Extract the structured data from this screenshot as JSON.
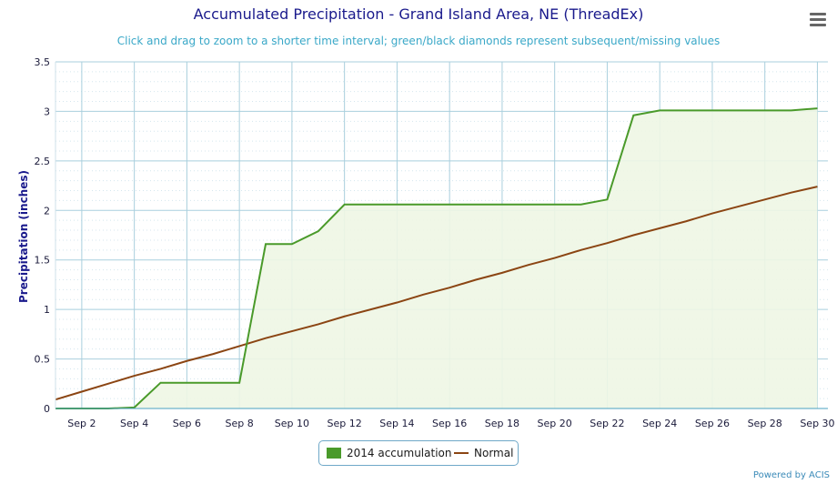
{
  "title": "Accumulated Precipitation - Grand Island Area, NE (ThreadEx)",
  "subtitle": "Click and drag to zoom to a shorter time interval; green/black diamonds represent subsequent/missing values",
  "credit": "Powered by ACIS",
  "menu_icon": "hamburger-menu-icon",
  "colors": {
    "accumulation": "#4a9a2a",
    "accumulation_fill": "#eef6e4",
    "normal": "#8b4513",
    "grid": "#a9cfdd",
    "axis_text": "#1a1a3a"
  },
  "chart_data": {
    "type": "line",
    "title": "Accumulated Precipitation - Grand Island Area, NE (ThreadEx)",
    "ylabel": "Precipitation (inches)",
    "xlabel": "",
    "ylim": [
      0,
      3.5
    ],
    "yticks": [
      "0",
      "0.5",
      "1",
      "1.5",
      "2",
      "2.5",
      "3",
      "3.5"
    ],
    "xticks": [
      {
        "day": 2,
        "label": "Sep 2"
      },
      {
        "day": 4,
        "label": "Sep 4"
      },
      {
        "day": 6,
        "label": "Sep 6"
      },
      {
        "day": 8,
        "label": "Sep 8"
      },
      {
        "day": 10,
        "label": "Sep 10"
      },
      {
        "day": 12,
        "label": "Sep 12"
      },
      {
        "day": 14,
        "label": "Sep 14"
      },
      {
        "day": 16,
        "label": "Sep 16"
      },
      {
        "day": 18,
        "label": "Sep 18"
      },
      {
        "day": 20,
        "label": "Sep 20"
      },
      {
        "day": 22,
        "label": "Sep 22"
      },
      {
        "day": 24,
        "label": "Sep 24"
      },
      {
        "day": 26,
        "label": "Sep 26"
      },
      {
        "day": 28,
        "label": "Sep 28"
      },
      {
        "day": 30,
        "label": "Sep 30"
      }
    ],
    "grid": true,
    "legend_position": "bottom-center",
    "x": [
      1,
      2,
      3,
      4,
      5,
      6,
      7,
      8,
      9,
      10,
      11,
      12,
      13,
      14,
      15,
      16,
      17,
      18,
      19,
      20,
      21,
      22,
      23,
      24,
      25,
      26,
      27,
      28,
      29,
      30
    ],
    "series": [
      {
        "name": "2014 accumulation",
        "values": [
          0,
          0,
          0,
          0.01,
          0.26,
          0.26,
          0.26,
          0.26,
          1.66,
          1.66,
          1.79,
          2.06,
          2.06,
          2.06,
          2.06,
          2.06,
          2.06,
          2.06,
          2.06,
          2.06,
          2.06,
          2.11,
          2.96,
          3.01,
          3.01,
          3.01,
          3.01,
          3.01,
          3.01,
          3.03
        ]
      },
      {
        "name": "Normal",
        "values": [
          0.09,
          0.17,
          0.25,
          0.33,
          0.4,
          0.48,
          0.55,
          0.63,
          0.71,
          0.78,
          0.85,
          0.93,
          1.0,
          1.07,
          1.15,
          1.22,
          1.3,
          1.37,
          1.45,
          1.52,
          1.6,
          1.67,
          1.75,
          1.82,
          1.89,
          1.97,
          2.04,
          2.11,
          2.18,
          2.24
        ]
      }
    ]
  },
  "legend": {
    "accumulation_label": "2014 accumulation",
    "normal_label": "Normal"
  }
}
